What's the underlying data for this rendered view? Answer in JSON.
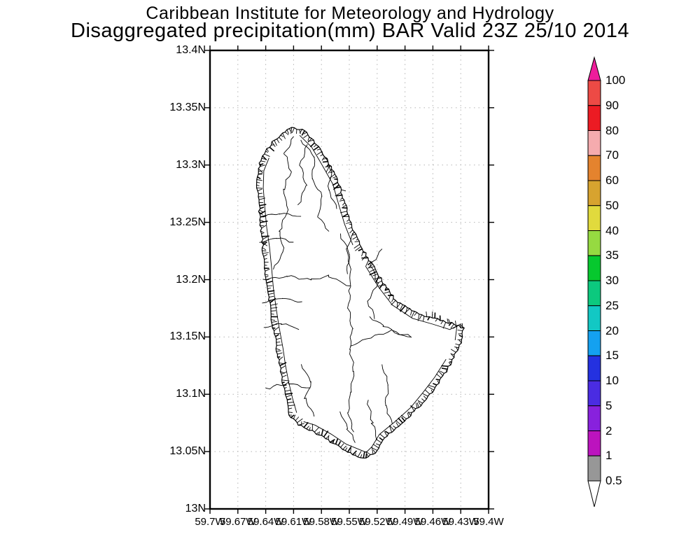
{
  "title": {
    "line1": "Caribbean Institute for Meteorology and Hydrology",
    "line2": "Disaggregated precipitation(mm) BAR Valid 23Z 25/10 2014"
  },
  "axes": {
    "y_labels": [
      "13.4N",
      "13.35N",
      "13.3N",
      "13.25N",
      "13.2N",
      "13.15N",
      "13.1N",
      "13.05N",
      "13N"
    ],
    "x_labels": [
      "59.7W",
      "59.67W",
      "59.64W",
      "59.61W",
      "59.58W",
      "59.55W",
      "59.52W",
      "59.49W",
      "59.46W",
      "59.43W",
      "59.4W"
    ],
    "lat_range": [
      "13N",
      "13.4N"
    ],
    "lon_range": [
      "59.7W",
      "59.4W"
    ],
    "grid_color": "#b3b3b3",
    "frame_color": "#000000"
  },
  "colorbar": {
    "unit": "mm",
    "labels_top_to_bottom": [
      "100",
      "90",
      "80",
      "70",
      "60",
      "50",
      "40",
      "35",
      "30",
      "25",
      "20",
      "15",
      "10",
      "5",
      "2",
      "1",
      "0.5"
    ],
    "segment_colors_top_to_bottom": [
      "#ed4a45",
      "#ec1b23",
      "#f5abae",
      "#e4832e",
      "#d7a32f",
      "#e1da3d",
      "#96da41",
      "#06c82e",
      "#0cc97e",
      "#12c8c4",
      "#14a1f0",
      "#2431e0",
      "#4a2ce2",
      "#8821dd",
      "#bc13be",
      "#979797"
    ],
    "top_arrow_color": "#ee1d9b",
    "bottom_arrow_color": "#ffffff",
    "outline_color": "#000000"
  },
  "map": {
    "region_code": "BAR",
    "coastline_lon_lat": [
      [
        59.612,
        13.333
      ],
      [
        59.598,
        13.33
      ],
      [
        59.585,
        13.318
      ],
      [
        59.573,
        13.303
      ],
      [
        59.562,
        13.285
      ],
      [
        59.555,
        13.267
      ],
      [
        59.549,
        13.25
      ],
      [
        59.54,
        13.233
      ],
      [
        59.527,
        13.215
      ],
      [
        59.513,
        13.197
      ],
      [
        59.5,
        13.182
      ],
      [
        59.48,
        13.172
      ],
      [
        59.458,
        13.166
      ],
      [
        59.44,
        13.162
      ],
      [
        59.427,
        13.158
      ],
      [
        59.43,
        13.145
      ],
      [
        59.44,
        13.128
      ],
      [
        59.452,
        13.112
      ],
      [
        59.465,
        13.098
      ],
      [
        59.48,
        13.085
      ],
      [
        59.497,
        13.072
      ],
      [
        59.512,
        13.062
      ],
      [
        59.522,
        13.049
      ],
      [
        59.535,
        13.044
      ],
      [
        59.557,
        13.052
      ],
      [
        59.573,
        13.06
      ],
      [
        59.59,
        13.068
      ],
      [
        59.605,
        13.073
      ],
      [
        59.614,
        13.082
      ],
      [
        59.618,
        13.095
      ],
      [
        59.622,
        13.11
      ],
      [
        59.625,
        13.125
      ],
      [
        59.628,
        13.14
      ],
      [
        59.632,
        13.158
      ],
      [
        59.635,
        13.175
      ],
      [
        59.638,
        13.192
      ],
      [
        59.641,
        13.21
      ],
      [
        59.643,
        13.228
      ],
      [
        59.645,
        13.245
      ],
      [
        59.647,
        13.262
      ],
      [
        59.649,
        13.28
      ],
      [
        59.648,
        13.297
      ],
      [
        59.642,
        13.31
      ],
      [
        59.633,
        13.32
      ],
      [
        59.622,
        13.328
      ]
    ],
    "watershed_lines_lon_lat": [
      [
        [
          59.545,
          13.242
        ],
        [
          59.553,
          13.227
        ],
        [
          59.549,
          13.209
        ],
        [
          59.549,
          13.194
        ]
      ],
      [
        [
          59.549,
          13.194
        ],
        [
          59.551,
          13.175
        ],
        [
          59.547,
          13.157
        ],
        [
          59.549,
          13.139
        ],
        [
          59.545,
          13.12
        ],
        [
          59.549,
          13.102
        ],
        [
          59.551,
          13.084
        ],
        [
          59.545,
          13.067
        ]
      ],
      [
        [
          59.643,
          13.2
        ],
        [
          59.617,
          13.203
        ],
        [
          59.591,
          13.2
        ],
        [
          59.572,
          13.203
        ],
        [
          59.549,
          13.194
        ]
      ],
      [
        [
          59.61,
          13.325
        ],
        [
          59.619,
          13.31
        ],
        [
          59.613,
          13.294
        ],
        [
          59.621,
          13.279
        ],
        [
          59.616,
          13.261
        ],
        [
          59.625,
          13.242
        ],
        [
          59.621,
          13.224
        ],
        [
          59.632,
          13.209
        ]
      ],
      [
        [
          59.602,
          13.322
        ],
        [
          59.587,
          13.307
        ],
        [
          59.591,
          13.288
        ],
        [
          59.579,
          13.273
        ],
        [
          59.583,
          13.255
        ],
        [
          59.572,
          13.242
        ]
      ],
      [
        [
          59.595,
          13.318
        ],
        [
          59.603,
          13.3
        ],
        [
          59.597,
          13.282
        ],
        [
          59.605,
          13.265
        ]
      ],
      [
        [
          59.58,
          13.312
        ],
        [
          59.569,
          13.296
        ],
        [
          59.573,
          13.278
        ],
        [
          59.563,
          13.262
        ]
      ],
      [
        [
          59.515,
          13.227
        ],
        [
          59.527,
          13.212
        ],
        [
          59.519,
          13.197
        ],
        [
          59.53,
          13.181
        ],
        [
          59.522,
          13.166
        ]
      ],
      [
        [
          59.528,
          13.168
        ],
        [
          59.513,
          13.16
        ],
        [
          59.497,
          13.152
        ],
        [
          59.483,
          13.15
        ]
      ],
      [
        [
          59.549,
          13.142
        ],
        [
          59.527,
          13.15
        ],
        [
          59.504,
          13.155
        ],
        [
          59.483,
          13.15
        ]
      ],
      [
        [
          59.515,
          13.126
        ],
        [
          59.508,
          13.108
        ],
        [
          59.511,
          13.09
        ],
        [
          59.504,
          13.074
        ]
      ],
      [
        [
          59.602,
          13.126
        ],
        [
          59.591,
          13.111
        ],
        [
          59.598,
          13.096
        ],
        [
          59.587,
          13.081
        ]
      ],
      [
        [
          59.646,
          13.255
        ],
        [
          59.625,
          13.258
        ],
        [
          59.602,
          13.255
        ]
      ],
      [
        [
          59.647,
          13.233
        ],
        [
          59.628,
          13.236
        ],
        [
          59.61,
          13.233
        ]
      ],
      [
        [
          59.644,
          13.18
        ],
        [
          59.622,
          13.184
        ],
        [
          59.601,
          13.18
        ]
      ],
      [
        [
          59.642,
          13.158
        ],
        [
          59.623,
          13.162
        ],
        [
          59.604,
          13.157
        ]
      ],
      [
        [
          59.64,
          13.105
        ],
        [
          59.615,
          13.11
        ],
        [
          59.592,
          13.105
        ]
      ],
      [
        [
          59.56,
          13.085
        ],
        [
          59.552,
          13.07
        ],
        [
          59.543,
          13.058
        ]
      ],
      [
        [
          59.53,
          13.095
        ],
        [
          59.525,
          13.075
        ],
        [
          59.52,
          13.06
        ]
      ],
      [
        [
          59.56,
          13.24
        ],
        [
          59.549,
          13.222
        ],
        [
          59.553,
          13.205
        ]
      ]
    ]
  }
}
